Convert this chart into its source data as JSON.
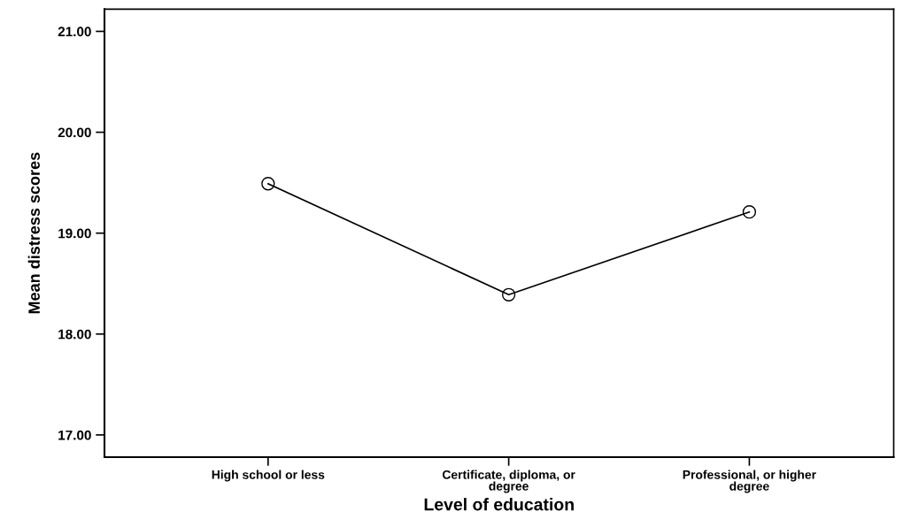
{
  "chart_data": {
    "type": "line",
    "xlabel": "Level of education",
    "ylabel": "Mean distress scores",
    "categories": [
      "High school or less",
      "Certificate, diploma, or\ndegree",
      "Professional, or higher\ndegree"
    ],
    "series": [
      {
        "color": "#000000",
        "values": [
          19.49,
          18.39,
          19.21
        ]
      }
    ],
    "ylim": [
      16.78,
      21.22
    ],
    "yticks": [
      {
        "value": 17,
        "label": "17.00"
      },
      {
        "value": 18,
        "label": "18.00"
      },
      {
        "value": 19,
        "label": "19.00"
      },
      {
        "value": 20,
        "label": "20.00"
      },
      {
        "value": 21,
        "label": "21.00"
      }
    ],
    "marker": "circle",
    "line_style": "solid",
    "grid": false
  }
}
